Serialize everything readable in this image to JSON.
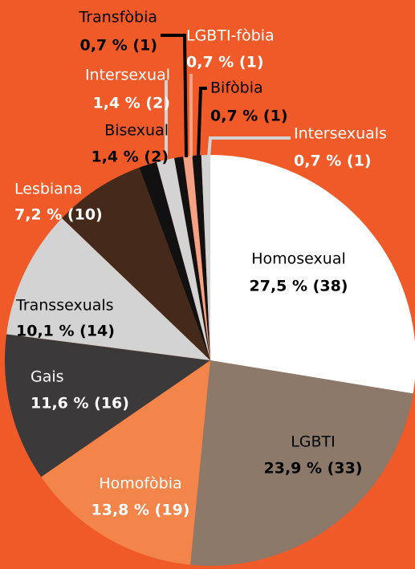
{
  "chart_data": {
    "type": "pie",
    "categories": [
      "Homosexual",
      "LGBTI",
      "Homofòbia",
      "Gais",
      "Transsexuals",
      "Lesbiana",
      "Bisexual",
      "Intersexual",
      "Transfòbia",
      "LGBTI-fòbia",
      "Bifòbia",
      "Intersexuals"
    ],
    "values": [
      27.5,
      23.9,
      13.8,
      11.6,
      10.1,
      7.2,
      1.4,
      1.4,
      0.7,
      0.7,
      0.7,
      0.7
    ],
    "value_labels": [
      "27,5 % (38)",
      "23,9 % (33)",
      "13,8 % (19)",
      "11,6 % (16)",
      "10,1 % (14)",
      "7,2 % (10)",
      "1,4 % (2)",
      "1,4 % (2)",
      "0,7 % (1)",
      "0,7 % (1)",
      "0,7 % (1)",
      "0,7 % (1)"
    ],
    "colors": [
      "#ffffff",
      "#8c7969",
      "#f3844a",
      "#3b393a",
      "#d3d3d3",
      "#45291a",
      "#111111",
      "#d3d3d3",
      "#111111",
      "#f5a184",
      "#111111",
      "#d3d3d3"
    ]
  }
}
